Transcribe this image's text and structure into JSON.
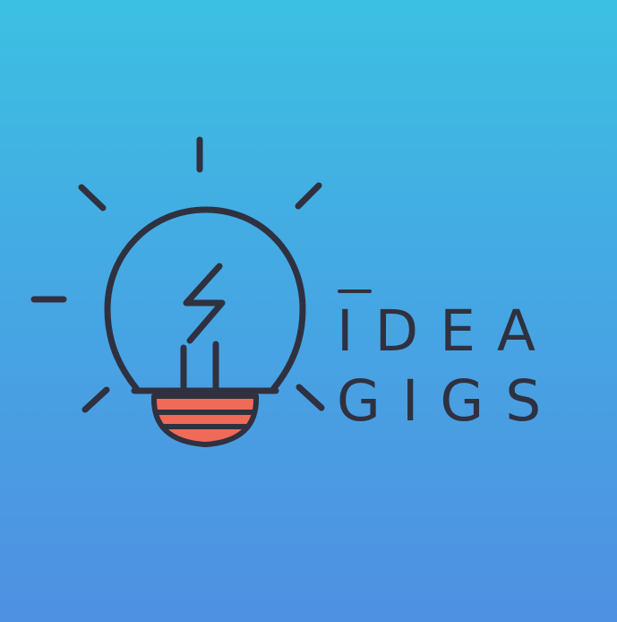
{
  "logo": {
    "line_1": "IDEA",
    "line_2": "GIGS",
    "colors": {
      "background_top": "#3cc0e2",
      "background_bottom": "#4f90e2",
      "ink": "#2f3140",
      "accent": "#f06a58"
    },
    "icon": "lightbulb-icon"
  }
}
